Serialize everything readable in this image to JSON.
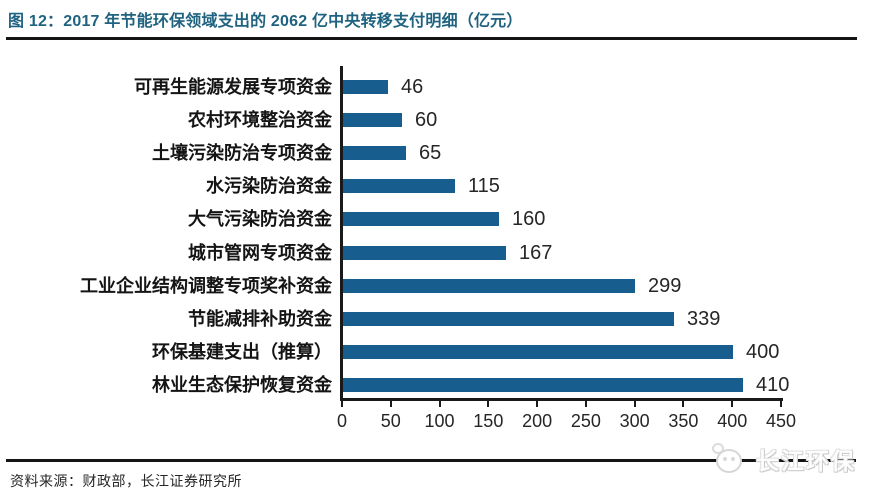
{
  "title": "图 12：2017 年节能环保领域支出的 2062 亿中央转移支付明细（亿元）",
  "source": "资料来源：财政部，长江证券研究所",
  "watermark": {
    "text": "长江环保",
    "logo": "panda-logo-icon"
  },
  "colors": {
    "bar": "#175e8e",
    "title": "#1f6380",
    "axis": "#1a1a1a",
    "text": "#262626"
  },
  "chart_data": {
    "type": "bar",
    "orientation": "horizontal",
    "title": "图 12：2017 年节能环保领域支出的 2062 亿中央转移支付明细（亿元）",
    "categories": [
      "可再生能源发展专项资金",
      "农村环境整治资金",
      "土壤污染防治专项资金",
      "水污染防治资金",
      "大气污染防治资金",
      "城市管网专项资金",
      "工业企业结构调整专项奖补资金",
      "节能减排补助资金",
      "环保基建支出（推算）",
      "林业生态保护恢复资金"
    ],
    "values": [
      46,
      60,
      65,
      115,
      160,
      167,
      299,
      339,
      400,
      410
    ],
    "x_ticks": [
      0,
      50,
      100,
      150,
      200,
      250,
      300,
      350,
      400,
      450
    ],
    "xlim": [
      0,
      450
    ],
    "xlabel": "",
    "ylabel": "",
    "value_labels": true,
    "grid": false,
    "legend": false
  }
}
